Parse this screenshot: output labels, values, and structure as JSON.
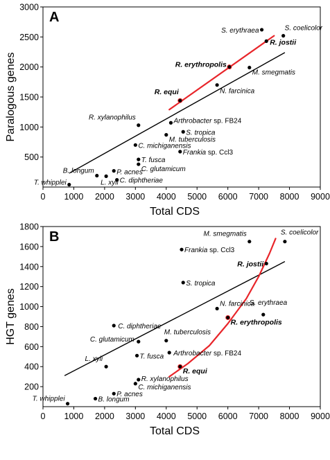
{
  "colors": {
    "axis": "#000000",
    "fit_line": "#000000",
    "highlight_line": "#e8252a",
    "point": "#000000"
  },
  "chart_data": [
    {
      "type": "scatter",
      "panel_label": "A",
      "xlabel": "Total CDS",
      "ylabel": "Paralogous genes",
      "xlim": [
        0,
        9000
      ],
      "ylim": [
        0,
        3000
      ],
      "xticks": [
        0,
        1000,
        2000,
        3000,
        4000,
        5000,
        6000,
        7000,
        8000,
        9000
      ],
      "yticks": [
        500,
        1000,
        1500,
        2000,
        2500,
        3000
      ],
      "grid": false,
      "fit_line": {
        "points": [
          [
            850,
            230
          ],
          [
            7850,
            2240
          ]
        ]
      },
      "highlight_curve": {
        "color": "#e8252a",
        "points": [
          [
            4100,
            1290
          ],
          [
            7500,
            2520
          ]
        ]
      },
      "points": [
        {
          "name": "T. whipplei",
          "x": 850,
          "y": 40
        },
        {
          "name": "B. longum",
          "x": 1750,
          "y": 190
        },
        {
          "name": "L. xyli",
          "x": 2050,
          "y": 180
        },
        {
          "name": "P. acnes",
          "x": 2300,
          "y": 270
        },
        {
          "name": "C. diphtheriae",
          "x": 2400,
          "y": 120
        },
        {
          "name": "C. michiganensis",
          "x": 3000,
          "y": 700
        },
        {
          "name": "T. fusca",
          "x": 3100,
          "y": 460
        },
        {
          "name": "C. glutamicum",
          "x": 3100,
          "y": 380
        },
        {
          "name": "R. xylanophilus",
          "x": 3100,
          "y": 1030
        },
        {
          "name": "Arthrobacter sp. FB24",
          "x": 4150,
          "y": 1070,
          "bold": false,
          "plain_part": "sp. FB24"
        },
        {
          "name": "M. tuberculosis",
          "x": 4000,
          "y": 870
        },
        {
          "name": "S. tropica",
          "x": 4550,
          "y": 920
        },
        {
          "name": "Frankia sp. Ccl3",
          "x": 4450,
          "y": 590,
          "plain_part": "sp. Ccl3"
        },
        {
          "name": "R. equi",
          "x": 4450,
          "y": 1440,
          "bold": true,
          "red": true
        },
        {
          "name": "N. farcinica",
          "x": 5650,
          "y": 1700
        },
        {
          "name": "R. erythropolis",
          "x": 6050,
          "y": 2000,
          "bold": true,
          "red": true
        },
        {
          "name": "M. smegmatis",
          "x": 6700,
          "y": 1990
        },
        {
          "name": "S. erythraea",
          "x": 7100,
          "y": 2620
        },
        {
          "name": "R. jostii",
          "x": 7250,
          "y": 2430,
          "bold": true
        },
        {
          "name": "S. coelicolor",
          "x": 7800,
          "y": 2520
        }
      ]
    },
    {
      "type": "scatter",
      "panel_label": "B",
      "xlabel": "Total CDS",
      "ylabel": "HGT genes",
      "xlim": [
        0,
        9000
      ],
      "ylim": [
        0,
        1800
      ],
      "xticks": [
        0,
        1000,
        2000,
        3000,
        4000,
        5000,
        6000,
        7000,
        8000,
        9000
      ],
      "yticks": [
        200,
        400,
        600,
        800,
        1000,
        1200,
        1400,
        1600,
        1800
      ],
      "grid": false,
      "fit_line": {
        "points": [
          [
            700,
            310
          ],
          [
            7850,
            1450
          ]
        ]
      },
      "highlight_curve": {
        "color": "#e8252a",
        "points": [
          [
            4100,
            300
          ],
          [
            4700,
            430
          ],
          [
            5400,
            610
          ],
          [
            6000,
            830
          ],
          [
            6600,
            1080
          ],
          [
            7000,
            1300
          ],
          [
            7350,
            1530
          ],
          [
            7550,
            1680
          ]
        ]
      },
      "points": [
        {
          "name": "T. whipplei",
          "x": 800,
          "y": 30
        },
        {
          "name": "B. longum",
          "x": 1700,
          "y": 80
        },
        {
          "name": "L. xyli",
          "x": 2050,
          "y": 400
        },
        {
          "name": "P. acnes",
          "x": 2300,
          "y": 130
        },
        {
          "name": "C. diphtheriae",
          "x": 2300,
          "y": 810
        },
        {
          "name": "C. michiganensis",
          "x": 3000,
          "y": 230
        },
        {
          "name": "R. xylanophilus",
          "x": 3100,
          "y": 270
        },
        {
          "name": "T. fusca",
          "x": 3050,
          "y": 510
        },
        {
          "name": "C. glutamicum",
          "x": 3100,
          "y": 650
        },
        {
          "name": "M. tuberculosis",
          "x": 4000,
          "y": 660
        },
        {
          "name": "Arthrobacter sp. FB24",
          "x": 4100,
          "y": 540,
          "plain_part": "sp. FB24"
        },
        {
          "name": "R. equi",
          "x": 4450,
          "y": 400,
          "bold": true,
          "red": true
        },
        {
          "name": "Frankia sp. Ccl3",
          "x": 4500,
          "y": 1570,
          "plain_part": "sp. Ccl3"
        },
        {
          "name": "S. tropica",
          "x": 4550,
          "y": 1240
        },
        {
          "name": "N. farcinica",
          "x": 5650,
          "y": 980
        },
        {
          "name": "R. erythropolis",
          "x": 6000,
          "y": 890,
          "bold": true,
          "red": true
        },
        {
          "name": "M. smegmatis",
          "x": 6700,
          "y": 1650
        },
        {
          "name": "S. erythraea",
          "x": 7150,
          "y": 920
        },
        {
          "name": "R. jostii",
          "x": 7250,
          "y": 1430,
          "bold": true
        },
        {
          "name": "S. coelicolor",
          "x": 7850,
          "y": 1650
        }
      ]
    }
  ]
}
